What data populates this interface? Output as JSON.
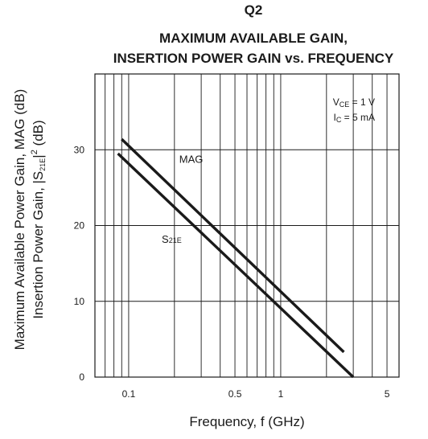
{
  "header": {
    "device": "Q2",
    "title_line1": "MAXIMUM AVAILABLE GAIN,",
    "title_line2": "INSERTION POWER GAIN vs. FREQUENCY"
  },
  "chart_data": {
    "type": "line",
    "title": "MAXIMUM AVAILABLE GAIN, INSERTION POWER GAIN vs. FREQUENCY",
    "xlabel": "Frequency, f (GHz)",
    "ylabel_line1": "Maximum Available Power Gain, MAG (dB)",
    "ylabel_line2": {
      "prefix": "Insertion Power Gain, |S",
      "sub": "21E",
      "suffix": "|",
      "sup": "2",
      "unit": " (dB)"
    },
    "x_scale": "log",
    "xlim": [
      0.06,
      6
    ],
    "ylim": [
      0,
      40
    ],
    "x_ticks": [
      {
        "value": 0.1,
        "label": "0.1"
      },
      {
        "value": 0.5,
        "label": "0.5"
      },
      {
        "value": 1,
        "label": "1"
      },
      {
        "value": 5,
        "label": "5"
      }
    ],
    "y_ticks": [
      {
        "value": 0,
        "label": "0"
      },
      {
        "value": 10,
        "label": "10"
      },
      {
        "value": 20,
        "label": "20"
      },
      {
        "value": 30,
        "label": "30"
      }
    ],
    "x_gridlines": [
      0.06,
      0.07,
      0.08,
      0.09,
      0.1,
      0.2,
      0.3,
      0.4,
      0.5,
      0.6,
      0.7,
      0.8,
      0.9,
      1,
      2,
      3,
      4,
      5,
      6
    ],
    "y_gridlines": [
      10,
      20,
      30
    ],
    "grid": true,
    "conditions": [
      {
        "main": "V",
        "sub": "CE",
        "rest": " = 1 V"
      },
      {
        "main": "I",
        "sub": "C",
        "rest": " = 5 mA"
      }
    ],
    "series": [
      {
        "name_main": "MAG",
        "name_sub": "",
        "label_x": 0.215,
        "label_y": 28.3,
        "points": [
          [
            0.09,
            31.4
          ],
          [
            2.6,
            3.3
          ]
        ]
      },
      {
        "name_main": "S",
        "name_sub": "21E",
        "label_x": 0.165,
        "label_y": 17.7,
        "points": [
          [
            0.085,
            29.5
          ],
          [
            3.0,
            0
          ]
        ]
      }
    ]
  }
}
